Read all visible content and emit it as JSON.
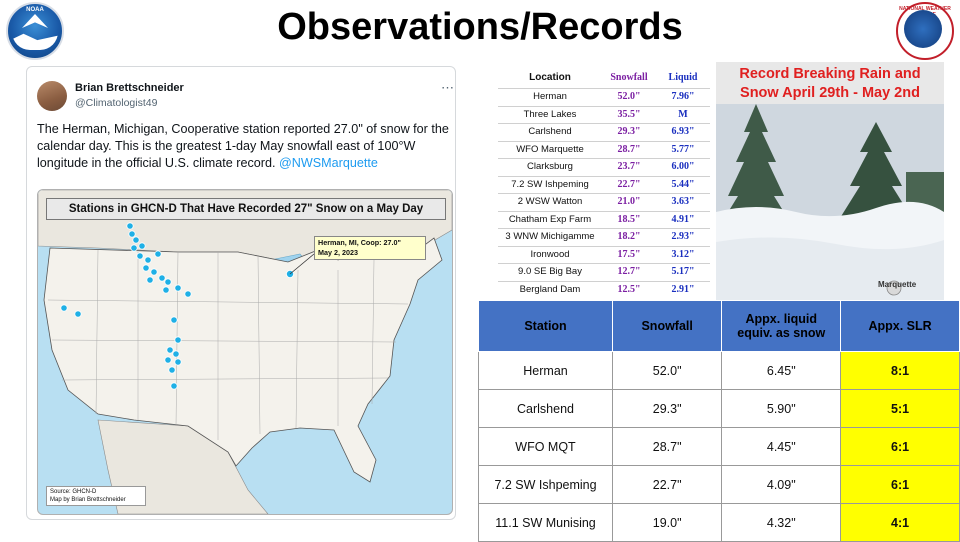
{
  "header": {
    "title": "Observations/Records"
  },
  "logos": {
    "left": "NOAA",
    "right": "NATIONAL WEATHER SERVICE"
  },
  "tweet": {
    "author_name": "Brian Brettschneider",
    "author_handle": "@Climatologist49",
    "text": "The Herman, Michigan, Cooperative station reported 27.0\" of snow for the calendar day. This is the greatest 1-day May snowfall east of 100°W longitude in the official U.S. climate record.",
    "mention": "@NWSMarquette",
    "map": {
      "title": "Stations in GHCN-D That Have Recorded 27\" Snow on a May Day",
      "callout_line1": "Herman, MI, Coop: 27.0\"",
      "callout_line2": "May 2, 2023",
      "source_line1": "Source: GHCN-D",
      "source_line2": "Map by Brian Brettschneider"
    }
  },
  "records_table": {
    "headers": [
      "Location",
      "Snowfall",
      "Liquid"
    ],
    "rows": [
      {
        "location": "Herman",
        "snowfall": "52.0\"",
        "liquid": "7.96\""
      },
      {
        "location": "Three Lakes",
        "snowfall": "35.5\"",
        "liquid": "M"
      },
      {
        "location": "Carlshend",
        "snowfall": "29.3\"",
        "liquid": "6.93\""
      },
      {
        "location": "WFO Marquette",
        "snowfall": "28.7\"",
        "liquid": "5.77\""
      },
      {
        "location": "Clarksburg",
        "snowfall": "23.7\"",
        "liquid": "6.00\""
      },
      {
        "location": "7.2 SW Ishpeming",
        "snowfall": "22.7\"",
        "liquid": "5.44\""
      },
      {
        "location": "2 WSW Watton",
        "snowfall": "21.0\"",
        "liquid": "3.63\""
      },
      {
        "location": "Chatham Exp Farm",
        "snowfall": "18.5\"",
        "liquid": "4.91\""
      },
      {
        "location": "3 WNW Michigamme",
        "snowfall": "18.2\"",
        "liquid": "2.93\""
      },
      {
        "location": "Ironwood",
        "snowfall": "17.5\"",
        "liquid": "3.12\""
      },
      {
        "location": "9.0 SE Big Bay",
        "snowfall": "12.7\"",
        "liquid": "5.17\""
      },
      {
        "location": "Bergland Dam",
        "snowfall": "12.5\"",
        "liquid": "2.91\""
      }
    ]
  },
  "photo_panel": {
    "title_line1": "Record Breaking Rain and",
    "title_line2": "Snow April 29th - May 2nd",
    "watermark": "Marquette"
  },
  "slr_table": {
    "headers": [
      "Station",
      "Snowfall",
      "Appx. liquid equiv. as snow",
      "Appx. SLR"
    ],
    "rows": [
      {
        "station": "Herman",
        "snowfall": "52.0\"",
        "liquid": "6.45\"",
        "slr": "8:1"
      },
      {
        "station": "Carlshend",
        "snowfall": "29.3\"",
        "liquid": "5.90\"",
        "slr": "5:1"
      },
      {
        "station": "WFO MQT",
        "snowfall": "28.7\"",
        "liquid": "4.45\"",
        "slr": "6:1"
      },
      {
        "station": "7.2 SW Ishpeming",
        "snowfall": "22.7\"",
        "liquid": "4.09\"",
        "slr": "6:1"
      },
      {
        "station": "11.1 SW Munising",
        "snowfall": "19.0\"",
        "liquid": "4.32\"",
        "slr": "4:1"
      }
    ]
  },
  "colors": {
    "table_header": "#4472c4",
    "slr_highlight": "#ffff00",
    "snowfall_text": "#7b1fa2",
    "liquid_text": "#1a2fbf",
    "photo_title": "#e02020",
    "map_points": "#1fb0e6"
  }
}
